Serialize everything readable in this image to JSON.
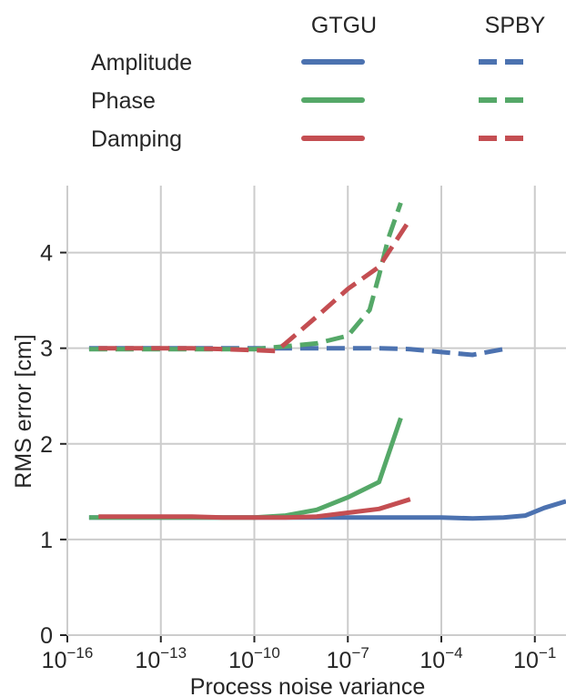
{
  "chart_data": {
    "type": "line",
    "title": "",
    "xlabel": "Process noise variance",
    "ylabel": "RMS error [cm]",
    "xscale": "log",
    "xlim": [
      1e-16,
      1.0
    ],
    "ylim": [
      0,
      4.7
    ],
    "x_ticks": [
      {
        "base": "10",
        "exp": "−16",
        "value": 1e-16
      },
      {
        "base": "10",
        "exp": "−13",
        "value": 1e-13
      },
      {
        "base": "10",
        "exp": "−10",
        "value": 1e-10
      },
      {
        "base": "10",
        "exp": "−7",
        "value": 1e-07
      },
      {
        "base": "10",
        "exp": "−4",
        "value": 0.0001
      },
      {
        "base": "10",
        "exp": "−1",
        "value": 0.1
      }
    ],
    "y_ticks": [
      0,
      1,
      2,
      3,
      4
    ],
    "grid": true,
    "legend": {
      "placement": "top",
      "columns": [
        "GTGU",
        "SPBY"
      ],
      "rows": [
        "Amplitude",
        "Phase",
        "Damping"
      ]
    },
    "colors": {
      "amplitude": "#4c72b0",
      "phase": "#55a868",
      "damping": "#c44e52"
    },
    "series": [
      {
        "name": "Amplitude",
        "method": "GTGU",
        "quantity": "amplitude",
        "dashed": false,
        "x": [
          5e-16,
          1e-15,
          1e-14,
          1e-13,
          1e-12,
          1e-11,
          1e-10,
          1e-09,
          1e-08,
          1e-07,
          1e-06,
          1e-05,
          0.0001,
          0.001,
          0.01,
          0.05,
          0.2,
          1.0
        ],
        "y": [
          1.23,
          1.23,
          1.23,
          1.23,
          1.23,
          1.23,
          1.23,
          1.23,
          1.23,
          1.23,
          1.23,
          1.23,
          1.23,
          1.22,
          1.23,
          1.25,
          1.33,
          1.4
        ]
      },
      {
        "name": "Phase",
        "method": "GTGU",
        "quantity": "phase",
        "dashed": false,
        "x": [
          5e-16,
          1e-15,
          1e-14,
          1e-13,
          1e-12,
          1e-11,
          1e-10,
          1e-09,
          1e-08,
          1e-07,
          1e-06,
          5e-06
        ],
        "y": [
          1.23,
          1.23,
          1.23,
          1.23,
          1.23,
          1.23,
          1.23,
          1.25,
          1.31,
          1.44,
          1.6,
          2.27
        ]
      },
      {
        "name": "Damping",
        "method": "GTGU",
        "quantity": "damping",
        "dashed": false,
        "x": [
          1e-15,
          1e-14,
          1e-13,
          1e-12,
          1e-11,
          1e-10,
          1e-09,
          1e-08,
          1e-07,
          1e-06,
          1e-05
        ],
        "y": [
          1.24,
          1.24,
          1.24,
          1.24,
          1.23,
          1.23,
          1.23,
          1.24,
          1.28,
          1.32,
          1.42
        ]
      },
      {
        "name": "Amplitude",
        "method": "SPBY",
        "quantity": "amplitude",
        "dashed": false,
        "x": [
          5e-16,
          1e-15,
          1e-14,
          1e-13,
          1e-12,
          1e-11,
          1e-10,
          1e-09,
          1e-08,
          1e-07,
          1e-06,
          1e-05,
          0.0001,
          0.001,
          0.01
        ],
        "y": [
          3.0,
          3.0,
          3.0,
          3.0,
          3.0,
          3.0,
          3.0,
          3.0,
          3.0,
          3.0,
          3.0,
          2.99,
          2.96,
          2.93,
          2.99
        ]
      },
      {
        "name": "Phase",
        "method": "SPBY",
        "quantity": "phase",
        "dashed": false,
        "x": [
          5e-16,
          1e-15,
          1e-14,
          1e-13,
          1e-12,
          1e-11,
          1e-10,
          1e-09,
          1e-08,
          1e-07,
          5e-07,
          1e-06,
          2e-06,
          5e-06
        ],
        "y": [
          2.99,
          2.99,
          2.99,
          2.99,
          2.99,
          2.99,
          2.99,
          3.02,
          3.05,
          3.13,
          3.4,
          3.76,
          4.15,
          4.52
        ]
      },
      {
        "name": "Damping",
        "method": "SPBY",
        "quantity": "damping",
        "dashed": false,
        "x": [
          1e-15,
          1e-14,
          1e-13,
          1e-12,
          1e-11,
          1e-10,
          5e-10,
          1e-09,
          1e-08,
          1e-07,
          1e-06,
          1e-05
        ],
        "y": [
          3.0,
          3.0,
          3.0,
          3.0,
          2.99,
          2.98,
          2.97,
          3.05,
          3.33,
          3.62,
          3.85,
          4.35
        ]
      }
    ]
  }
}
